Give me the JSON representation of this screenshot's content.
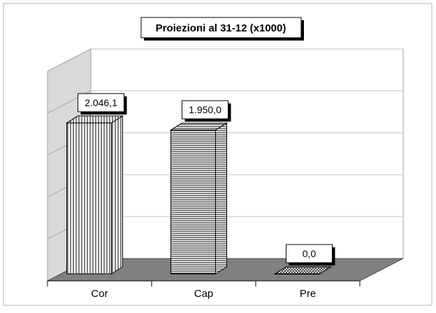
{
  "chart_data": {
    "type": "bar",
    "title": "Proiezioni al 31-12 (x1000)",
    "categories": [
      "Cor",
      "Cap",
      "Pre"
    ],
    "values": [
      2046.1,
      1950.0,
      0.0
    ],
    "value_labels": [
      "2.046,1",
      "1.950,0",
      "0,0"
    ],
    "xlabel": "",
    "ylabel": "",
    "ylim": [
      0,
      2500
    ],
    "grid": true,
    "legend": "none",
    "style": "3d",
    "colors": {
      "wall_left": "#d9d9d9",
      "floor": "#808080",
      "bar_fill": "#ffffff",
      "bar_stroke": "#000000",
      "grid": "#c0c0c0"
    },
    "patterns": [
      "vertical-stripes",
      "horizontal-stripes",
      "crosshatch"
    ]
  }
}
